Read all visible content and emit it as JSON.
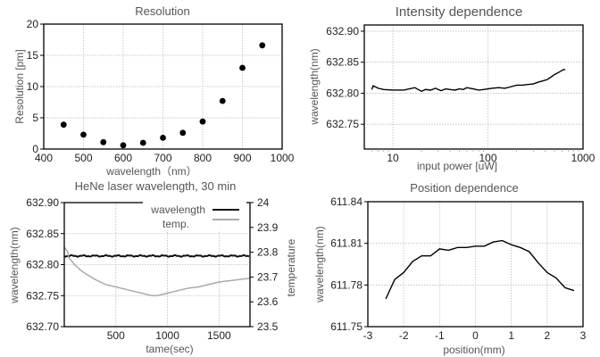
{
  "chart_data": [
    {
      "id": "resolution",
      "type": "scatter",
      "title": "Resolution",
      "xlabel": "wavelength（nm）",
      "ylabel": "Resolution [pm]",
      "xlim": [
        400,
        1000
      ],
      "ylim": [
        0,
        20
      ],
      "xticks": [
        400,
        500,
        600,
        700,
        800,
        900,
        1000
      ],
      "yticks": [
        0,
        5,
        10,
        15,
        20
      ],
      "grid": true,
      "x": [
        450,
        500,
        550,
        600,
        650,
        700,
        750,
        800,
        850,
        900,
        950
      ],
      "y": [
        3.9,
        2.3,
        1.1,
        0.6,
        1.0,
        1.8,
        2.6,
        4.4,
        7.7,
        13.0,
        16.6
      ]
    },
    {
      "id": "intensity",
      "type": "line",
      "title": "Intensity dependence",
      "xlabel": "input power [uW]",
      "ylabel": "wavelength(nm)",
      "xscale": "log",
      "xlim": [
        5,
        1000
      ],
      "ylim": [
        632.71,
        632.91
      ],
      "xticks": [
        10,
        100,
        1000
      ],
      "yticks": [
        632.75,
        632.8,
        632.85,
        632.9
      ],
      "ytick_labels": [
        "632.75",
        "632.80",
        "632.85",
        "632.90"
      ],
      "grid": true,
      "x": [
        6,
        6.2,
        7,
        8,
        10,
        13,
        17,
        20,
        22,
        25,
        28,
        32,
        36,
        40,
        45,
        50,
        55,
        60,
        65,
        70,
        75,
        80,
        90,
        100,
        110,
        130,
        150,
        170,
        200,
        230,
        260,
        300,
        340,
        380,
        420,
        460,
        500,
        560,
        620,
        650
      ],
      "y": [
        632.806,
        632.812,
        632.808,
        632.806,
        632.805,
        632.805,
        632.809,
        632.803,
        632.806,
        632.805,
        632.808,
        632.804,
        632.807,
        632.806,
        632.805,
        632.807,
        632.806,
        632.809,
        632.808,
        632.807,
        632.806,
        632.805,
        632.806,
        632.807,
        632.808,
        632.809,
        632.808,
        632.81,
        632.813,
        632.813,
        632.814,
        632.815,
        632.818,
        632.82,
        632.822,
        632.826,
        632.83,
        632.834,
        632.838,
        632.838
      ]
    },
    {
      "id": "hene",
      "type": "line",
      "title": "HeNe laser wavelength, 30 min",
      "xlabel": "tame(sec)",
      "ylabel": "wavelength(nm)",
      "y2label": "temperature",
      "xlim": [
        0,
        1800
      ],
      "ylim": [
        632.7,
        632.9
      ],
      "y2lim": [
        23.5,
        24.0
      ],
      "xticks": [
        500,
        1000,
        1500
      ],
      "yticks": [
        632.7,
        632.75,
        632.8,
        632.85,
        632.9
      ],
      "ytick_labels": [
        "632.70",
        "632.75",
        "632.80",
        "632.85",
        "632.90"
      ],
      "y2ticks": [
        23.5,
        23.6,
        23.7,
        23.8,
        23.9,
        24
      ],
      "y2tick_labels": [
        "23.5",
        "23.6",
        "23.7",
        "23.8",
        "23.9",
        "24"
      ],
      "grid": true,
      "legend": "top-right",
      "series": [
        {
          "name": "wavelength",
          "axis": "left",
          "color": "#111111",
          "x": [
            0,
            1800
          ],
          "y": [
            632.814,
            632.814
          ]
        },
        {
          "name": "temp.",
          "axis": "right",
          "color": "#aaaaaa",
          "x": [
            0,
            20,
            35,
            40,
            60,
            100,
            150,
            200,
            300,
            400,
            500,
            600,
            700,
            800,
            850,
            900,
            950,
            1000,
            1100,
            1200,
            1300,
            1400,
            1500,
            1600,
            1700,
            1800
          ],
          "y": [
            23.82,
            23.81,
            23.8,
            23.78,
            23.77,
            23.75,
            23.73,
            23.715,
            23.69,
            23.67,
            23.66,
            23.65,
            23.64,
            23.63,
            23.625,
            23.625,
            23.63,
            23.635,
            23.645,
            23.655,
            23.66,
            23.67,
            23.68,
            23.685,
            23.69,
            23.695
          ]
        }
      ]
    },
    {
      "id": "position",
      "type": "line",
      "title": "Position dependence",
      "xlabel": "position(mm)",
      "ylabel": "wavelength(nm)",
      "xlim": [
        -3,
        3
      ],
      "ylim": [
        611.75,
        611.84
      ],
      "xticks": [
        -3,
        -2,
        -1,
        0,
        1,
        2,
        3
      ],
      "yticks": [
        611.75,
        611.78,
        611.81,
        611.84
      ],
      "ytick_labels": [
        "611.75",
        "611.78",
        "611.81",
        "611.84"
      ],
      "grid": true,
      "x": [
        -2.5,
        -2.25,
        -2.0,
        -1.75,
        -1.5,
        -1.25,
        -1.0,
        -0.75,
        -0.5,
        -0.25,
        0.0,
        0.25,
        0.5,
        0.75,
        1.0,
        1.25,
        1.5,
        1.75,
        2.0,
        2.25,
        2.5,
        2.75
      ],
      "y": [
        611.77,
        611.784,
        611.789,
        611.797,
        611.801,
        611.801,
        611.806,
        611.805,
        611.807,
        611.807,
        611.808,
        611.808,
        611.811,
        611.812,
        611.809,
        611.807,
        611.804,
        611.796,
        611.789,
        611.785,
        611.778,
        611.776
      ]
    }
  ]
}
